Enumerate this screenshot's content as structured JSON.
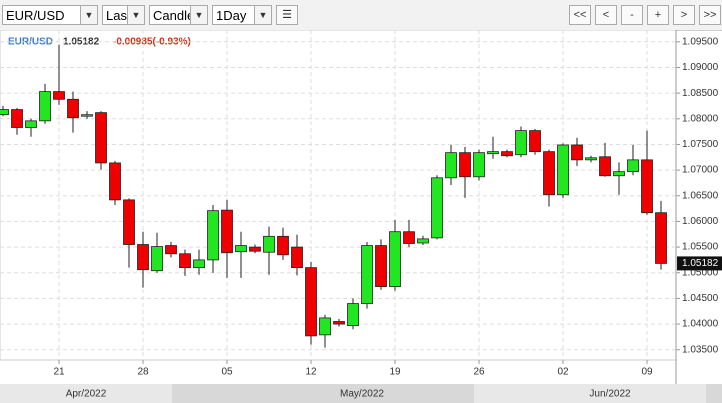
{
  "toolbar": {
    "symbol": "EUR/USD",
    "price_type": "Last",
    "chart_type": "Candle",
    "interval": "1Day",
    "buttons": [
      "<<",
      "<",
      "-",
      "+",
      ">",
      ">>"
    ]
  },
  "chart_data": {
    "type": "candlestick",
    "symbol": "EUR/USD",
    "last": 1.05182,
    "change": "-0.00985(-0.93%)",
    "categories": [
      null,
      null,
      null,
      null,
      "21",
      null,
      null,
      null,
      null,
      null,
      "28",
      null,
      null,
      null,
      null,
      null,
      "05",
      null,
      null,
      null,
      null,
      null,
      "12",
      null,
      null,
      null,
      null,
      null,
      "19",
      null,
      null,
      null,
      null,
      null,
      "26",
      null,
      null,
      null,
      null,
      null,
      "02",
      null,
      null,
      null,
      null,
      null,
      "09",
      null
    ],
    "months": [
      "Apr/2022",
      "May/2022",
      "Jun/2022"
    ],
    "open": [
      1.0808,
      1.0818,
      1.0783,
      1.0796,
      1.0853,
      1.0838,
      1.0805,
      1.0812,
      1.0714,
      1.0642,
      1.0555,
      1.0504,
      1.0553,
      1.0537,
      1.051,
      1.0525,
      1.0622,
      1.0541,
      1.055,
      1.054,
      1.0571,
      1.055,
      1.051,
      1.0379,
      1.0405,
      1.0397,
      1.044,
      1.0553,
      1.0473,
      1.058,
      1.0558,
      1.0568,
      1.0685,
      1.0734,
      1.0687,
      1.0732,
      1.0736,
      1.073,
      1.0777,
      1.0736,
      1.0652,
      1.0749,
      1.072,
      1.0726,
      1.0689,
      1.0697,
      1.072,
      1.0617
    ],
    "high": [
      1.0825,
      1.0821,
      1.08,
      1.0868,
      1.0944,
      1.0853,
      1.0815,
      1.0815,
      1.0718,
      1.0645,
      1.058,
      1.0578,
      1.056,
      1.0545,
      1.0545,
      1.0632,
      1.0642,
      1.058,
      1.0555,
      1.059,
      1.0588,
      1.0574,
      1.0521,
      1.0418,
      1.041,
      1.045,
      1.056,
      1.0565,
      1.0603,
      1.0603,
      1.0572,
      1.069,
      1.0749,
      1.0745,
      1.074,
      1.0765,
      1.074,
      1.0785,
      1.078,
      1.074,
      1.0752,
      1.0763,
      1.0728,
      1.0753,
      1.0715,
      1.0749,
      1.0777,
      1.064
    ],
    "low": [
      1.0805,
      1.0769,
      1.0765,
      1.079,
      1.0827,
      1.0773,
      1.08,
      1.0701,
      1.0632,
      1.051,
      1.0471,
      1.05,
      1.053,
      1.0494,
      1.0496,
      1.05,
      1.049,
      1.049,
      1.0538,
      1.0496,
      1.0525,
      1.0495,
      1.036,
      1.0354,
      1.0395,
      1.039,
      1.043,
      1.0467,
      1.0465,
      1.055,
      1.0554,
      1.0565,
      1.0671,
      1.0646,
      1.068,
      1.0722,
      1.0725,
      1.0725,
      1.073,
      1.0629,
      1.0646,
      1.0708,
      1.0715,
      1.0687,
      1.0652,
      1.069,
      1.0613,
      1.0506
    ],
    "close": [
      1.0818,
      1.0783,
      1.0796,
      1.0853,
      1.0838,
      1.0802,
      1.0808,
      1.0714,
      1.0642,
      1.0555,
      1.0506,
      1.0551,
      1.0537,
      1.051,
      1.0525,
      1.0621,
      1.0539,
      1.0553,
      1.0542,
      1.0571,
      1.0535,
      1.051,
      1.0377,
      1.0412,
      1.04,
      1.044,
      1.0553,
      1.0473,
      1.058,
      1.0557,
      1.0566,
      1.0685,
      1.0734,
      1.0687,
      1.0734,
      1.0736,
      1.0728,
      1.0777,
      1.0736,
      1.0652,
      1.0749,
      1.072,
      1.0724,
      1.0689,
      1.0697,
      1.072,
      1.0617,
      1.05182
    ],
    "up_color": "#22e622",
    "down_color": "#ee0000",
    "ylim": [
      1.033,
      1.0973
    ],
    "yticks": [
      {
        "value": 1.035,
        "label": "1.03500"
      },
      {
        "value": 1.04,
        "label": "1.04000"
      },
      {
        "value": 1.045,
        "label": "1.04500"
      },
      {
        "value": 1.05,
        "label": "1.05000"
      },
      {
        "value": 1.055,
        "label": "1.05500"
      },
      {
        "value": 1.06,
        "label": "1.06000"
      },
      {
        "value": 1.065,
        "label": "1.06500"
      },
      {
        "value": 1.07,
        "label": "1.07000"
      },
      {
        "value": 1.075,
        "label": "1.07500"
      },
      {
        "value": 1.08,
        "label": "1.08000"
      },
      {
        "value": 1.085,
        "label": "1.08500"
      },
      {
        "value": 1.09,
        "label": "1.09000"
      },
      {
        "value": 1.095,
        "label": "1.09500"
      }
    ],
    "grid": true
  }
}
